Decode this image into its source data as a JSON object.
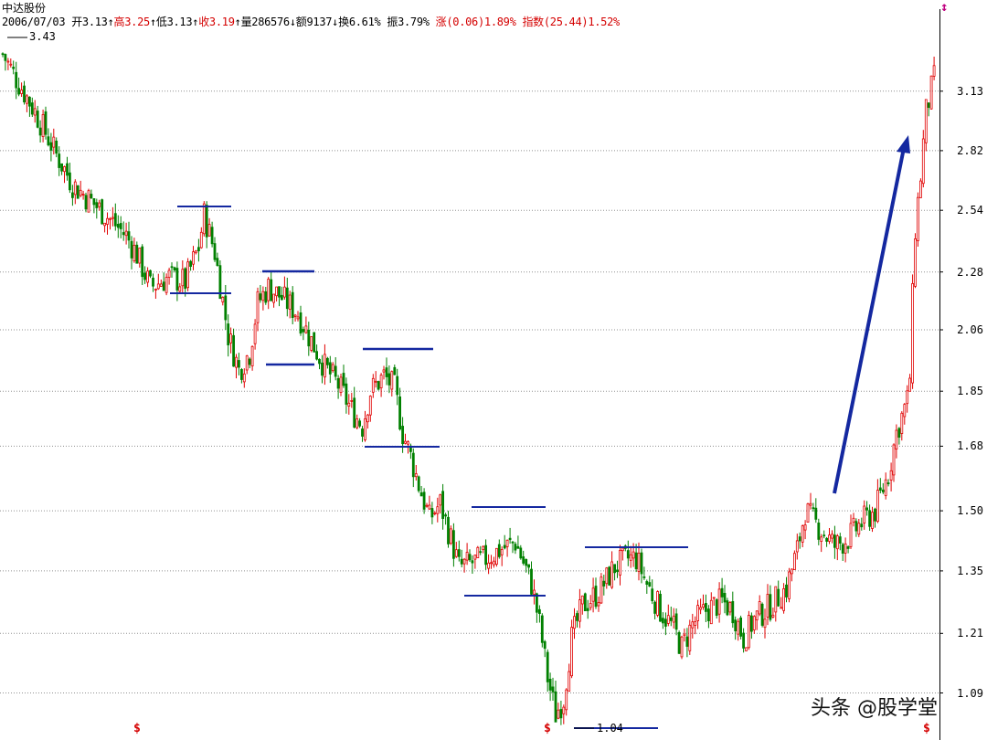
{
  "header": {
    "stock_name": "中达股份",
    "date": "2006/07/03",
    "open_label": "开",
    "open": "3.13",
    "high_label": "高",
    "high": "3.25",
    "low_label": "低",
    "low": "3.13",
    "close_label": "收",
    "close": "3.19",
    "volume_label": "量",
    "volume": "286576",
    "amount_label": "额",
    "amount": "9137",
    "turnover_label": "换",
    "turnover": "6.61%",
    "amplitude_label": "振",
    "amplitude": "3.79%",
    "change_label": "涨",
    "change": "(0.06)1.89%",
    "index_label": "指数",
    "index": "(25.44)1.52%"
  },
  "extremes": {
    "max_label": "3.43",
    "min_label": "1.04"
  },
  "watermark": "头条 @股学堂",
  "markers": [
    "$",
    "$",
    "$"
  ],
  "colors": {
    "up": "#e00000",
    "down": "#008000",
    "grid": "#909090",
    "annotation": "#1428a0"
  },
  "chart_data": {
    "type": "candlestick",
    "title": "",
    "y_scale": "log",
    "ylim": [
      1.02,
      3.5
    ],
    "y_ticks": [
      "3.13",
      "2.82",
      "2.54",
      "2.28",
      "2.06",
      "1.85",
      "1.68",
      "1.50",
      "1.35",
      "1.21",
      "1.09"
    ],
    "grid": true,
    "price_path": [
      [
        0,
        3.34
      ],
      [
        5,
        3.2
      ],
      [
        12,
        3.02
      ],
      [
        20,
        2.8
      ],
      [
        26,
        2.66
      ],
      [
        33,
        2.58
      ],
      [
        40,
        2.5
      ],
      [
        46,
        2.43
      ],
      [
        50,
        2.35
      ],
      [
        55,
        2.22
      ],
      [
        62,
        2.26
      ],
      [
        68,
        2.24
      ],
      [
        73,
        2.38
      ],
      [
        75,
        2.52
      ],
      [
        79,
        2.36
      ],
      [
        84,
        2.04
      ],
      [
        88,
        1.92
      ],
      [
        92,
        1.98
      ],
      [
        95,
        2.16
      ],
      [
        99,
        2.22
      ],
      [
        104,
        2.18
      ],
      [
        110,
        2.12
      ],
      [
        115,
        2.02
      ],
      [
        120,
        1.93
      ],
      [
        125,
        1.87
      ],
      [
        130,
        1.79
      ],
      [
        134,
        1.74
      ],
      [
        137,
        1.85
      ],
      [
        142,
        1.9
      ],
      [
        146,
        1.86
      ],
      [
        149,
        1.72
      ],
      [
        152,
        1.65
      ],
      [
        155,
        1.57
      ],
      [
        159,
        1.48
      ],
      [
        163,
        1.52
      ],
      [
        166,
        1.45
      ],
      [
        170,
        1.36
      ],
      [
        175,
        1.37
      ],
      [
        180,
        1.38
      ],
      [
        185,
        1.4
      ],
      [
        191,
        1.42
      ],
      [
        194,
        1.37
      ],
      [
        197,
        1.32
      ],
      [
        200,
        1.23
      ],
      [
        203,
        1.12
      ],
      [
        206,
        1.05
      ],
      [
        209,
        1.08
      ],
      [
        212,
        1.2
      ],
      [
        216,
        1.27
      ],
      [
        222,
        1.3
      ],
      [
        228,
        1.36
      ],
      [
        233,
        1.38
      ],
      [
        236,
        1.38
      ],
      [
        240,
        1.32
      ],
      [
        245,
        1.26
      ],
      [
        250,
        1.22
      ],
      [
        253,
        1.18
      ],
      [
        257,
        1.23
      ],
      [
        262,
        1.26
      ],
      [
        268,
        1.28
      ],
      [
        272,
        1.26
      ],
      [
        276,
        1.2
      ],
      [
        280,
        1.24
      ],
      [
        286,
        1.27
      ],
      [
        292,
        1.31
      ],
      [
        296,
        1.4
      ],
      [
        299,
        1.5
      ],
      [
        305,
        1.45
      ],
      [
        310,
        1.41
      ],
      [
        315,
        1.43
      ],
      [
        320,
        1.47
      ],
      [
        325,
        1.5
      ],
      [
        330,
        1.6
      ],
      [
        333,
        1.72
      ],
      [
        337,
        1.82
      ],
      [
        338,
        1.9
      ],
      [
        340,
        2.46
      ],
      [
        342,
        2.7
      ],
      [
        344,
        3.02
      ],
      [
        347,
        3.2
      ]
    ]
  }
}
